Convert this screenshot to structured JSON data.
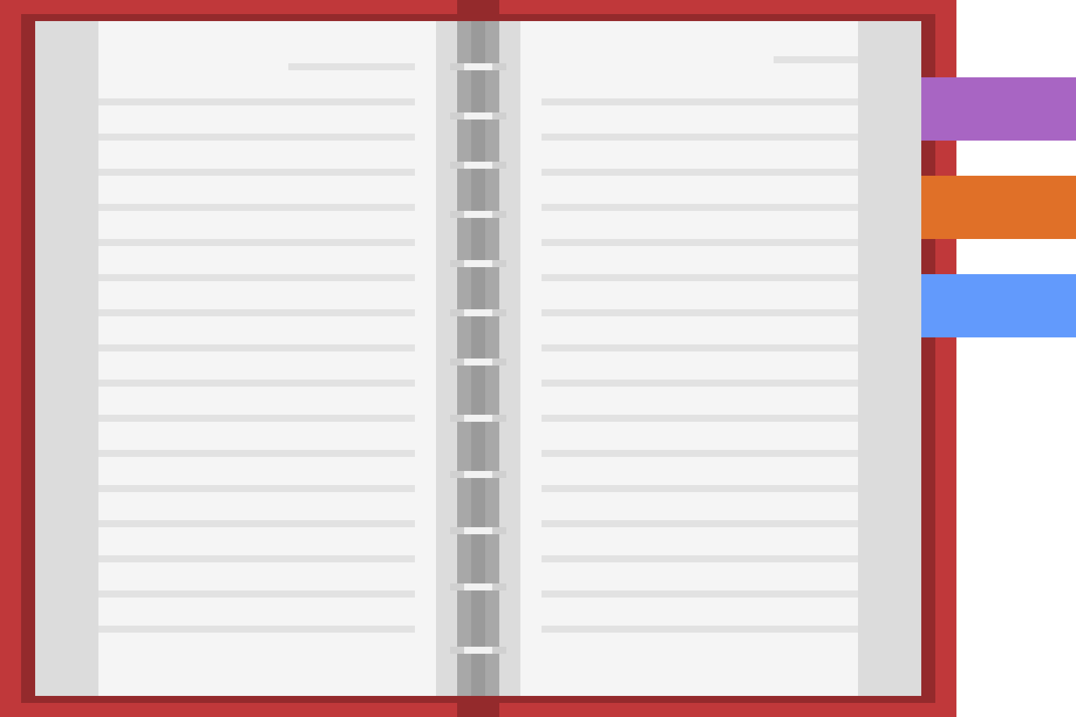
{
  "illustration": {
    "subject": "notebook-icon",
    "colors": {
      "cover_outer": "#c0383a",
      "cover_inner": "#942a2c",
      "page": "#f5f5f5",
      "page_edge": "#dcdcdc",
      "rule_line": "#e2e2e2",
      "spine_light": "#a8a8a8",
      "spine_dark": "#9a9a9a",
      "ring": "#f2f2f2",
      "ring_shadow": "#d0d0d0"
    },
    "tabs": [
      {
        "name": "purple-tab",
        "color": "#a865c3"
      },
      {
        "name": "orange-tab",
        "color": "#e07028"
      },
      {
        "name": "blue-tab",
        "color": "#629afc"
      }
    ]
  }
}
